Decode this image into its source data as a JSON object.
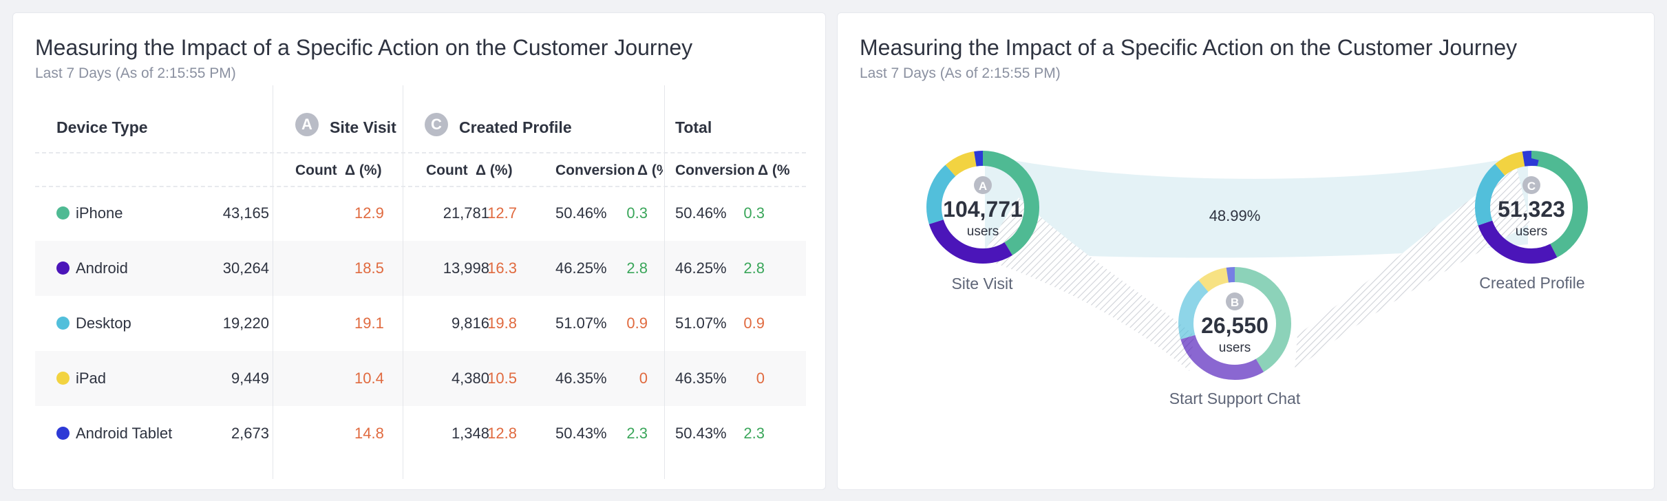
{
  "colors": {
    "iphone": "#4fba93",
    "android": "#4b15b9",
    "desktop": "#52bfdb",
    "ipad": "#f2d341",
    "android_tablet": "#2d3ad6",
    "increase": "#e06a3f",
    "decrease": "#3aa65a"
  },
  "left_card": {
    "title": "Measuring the Impact of a Specific Action on the Customer Journey",
    "subtitle": "Last 7 Days (As of 2:15:55 PM)",
    "table": {
      "device_header": "Device Type",
      "step_a": {
        "badge": "A",
        "label": "Site Visit"
      },
      "step_c": {
        "badge": "C",
        "label": "Created Profile"
      },
      "total_header": "Total",
      "sub_headers": {
        "count": "Count",
        "delta": "Δ (%)",
        "conversion": "Conversion",
        "conv_delta": "Δ (%"
      },
      "rows": [
        {
          "device": "iPhone",
          "color_key": "iphone",
          "a_count": "43,165",
          "a_delta": "12.9",
          "c_count": "21,781",
          "c_delta": "12.7",
          "c_conv": "50.46%",
          "c_conv_delta": "0.3",
          "t_conv": "50.46%",
          "t_conv_delta": "0.3"
        },
        {
          "device": "Android",
          "color_key": "android",
          "a_count": "30,264",
          "a_delta": "18.5",
          "c_count": "13,998",
          "c_delta": "16.3",
          "c_conv": "46.25%",
          "c_conv_delta": "2.8",
          "t_conv": "46.25%",
          "t_conv_delta": "2.8"
        },
        {
          "device": "Desktop",
          "color_key": "desktop",
          "a_count": "19,220",
          "a_delta": "19.1",
          "c_count": "9,816",
          "c_delta": "19.8",
          "c_conv": "51.07%",
          "c_conv_delta": "0.9",
          "t_conv": "51.07%",
          "t_conv_delta": "0.9"
        },
        {
          "device": "iPad",
          "color_key": "ipad",
          "a_count": "9,449",
          "a_delta": "10.4",
          "c_count": "4,380",
          "c_delta": "10.5",
          "c_conv": "46.35%",
          "c_conv_delta": "0",
          "t_conv": "46.35%",
          "t_conv_delta": "0"
        },
        {
          "device": "Android Tablet",
          "color_key": "android_tablet",
          "a_count": "2,673",
          "a_delta": "14.8",
          "c_count": "1,348",
          "c_delta": "12.8",
          "c_conv": "50.43%",
          "c_conv_delta": "2.3",
          "t_conv": "50.43%",
          "t_conv_delta": "2.3"
        }
      ]
    }
  },
  "right_card": {
    "title": "Measuring the Impact of a Specific Action on the Customer Journey",
    "subtitle": "Last 7 Days (As of 2:15:55 PM)",
    "flow_label": "48.99%",
    "nodes": [
      {
        "id": "site-visit",
        "badge": "A",
        "value": "104,771",
        "unit": "users",
        "label": "Site Visit",
        "segments": [
          43165,
          30264,
          19220,
          9449,
          2673
        ]
      },
      {
        "id": "created-profile",
        "badge": "C",
        "value": "51,323",
        "unit": "users",
        "label": "Created Profile",
        "segments": [
          21781,
          13998,
          9816,
          4380,
          1348
        ]
      },
      {
        "id": "support-chat",
        "badge": "B",
        "value": "26,550",
        "unit": "users",
        "label": "Start Support Chat",
        "segments": [
          11000,
          7700,
          4900,
          2300,
          650
        ]
      }
    ]
  }
}
